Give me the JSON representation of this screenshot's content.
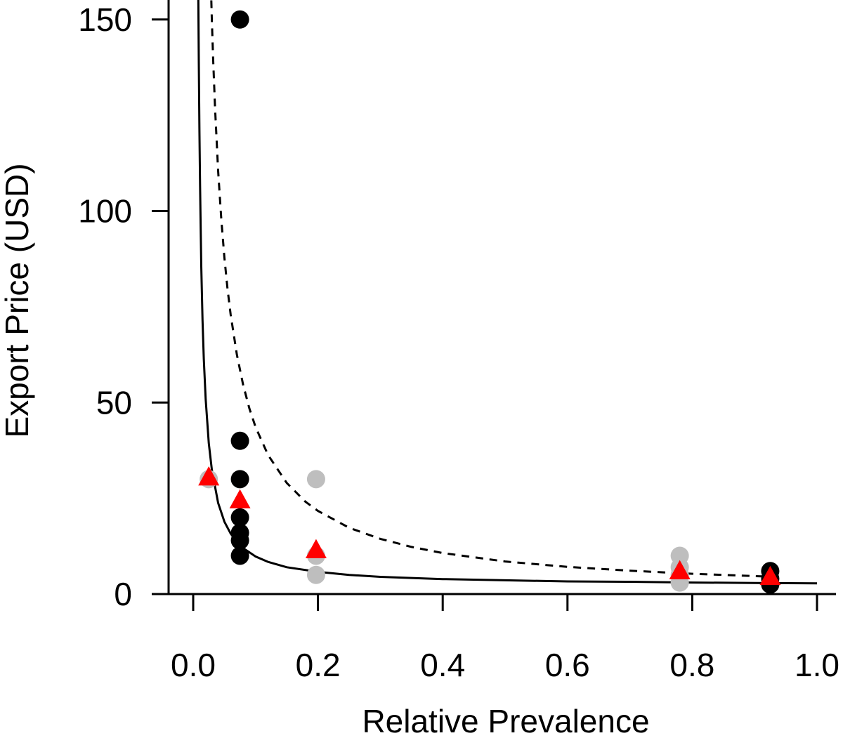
{
  "chart_data": {
    "type": "scatter",
    "title": "",
    "xlabel": "Relative Prevalence",
    "ylabel": "Export Price (USD)",
    "xlim": [
      -0.04,
      1.0
    ],
    "ylim": [
      0,
      155
    ],
    "x_ticks": [
      0.0,
      0.2,
      0.4,
      0.6,
      0.8,
      1.0
    ],
    "x_tick_labels": [
      "0.0",
      "0.2",
      "0.4",
      "0.6",
      "0.8",
      "1.0"
    ],
    "y_ticks": [
      0,
      50,
      100,
      150
    ],
    "y_tick_labels": [
      "0",
      "50",
      "100",
      "150"
    ],
    "grid": false,
    "legend": "none",
    "series": [
      {
        "marker": "circle",
        "color": "#000000",
        "points": [
          [
            0.075,
            150
          ],
          [
            0.075,
            40
          ],
          [
            0.075,
            30
          ],
          [
            0.075,
            20
          ],
          [
            0.075,
            16
          ],
          [
            0.075,
            14
          ],
          [
            0.075,
            10
          ],
          [
            0.925,
            6
          ],
          [
            0.925,
            4
          ],
          [
            0.925,
            2.5
          ]
        ]
      },
      {
        "marker": "circle",
        "color": "#bebebe",
        "points": [
          [
            0.025,
            30
          ],
          [
            0.197,
            30
          ],
          [
            0.197,
            10
          ],
          [
            0.197,
            5
          ],
          [
            0.78,
            10
          ],
          [
            0.78,
            7
          ],
          [
            0.78,
            5
          ],
          [
            0.78,
            3
          ]
        ]
      },
      {
        "marker": "triangle",
        "color": "#ff0000",
        "points": [
          [
            0.025,
            30.5
          ],
          [
            0.075,
            24.5
          ],
          [
            0.197,
            11.5
          ],
          [
            0.78,
            6
          ],
          [
            0.925,
            4.5
          ]
        ]
      }
    ],
    "curves": [
      {
        "style": "solid",
        "color": "#000000",
        "x": [
          0.0082,
          0.009,
          0.01,
          0.011,
          0.012,
          0.013,
          0.015,
          0.017,
          0.02,
          0.025,
          0.03,
          0.04,
          0.05,
          0.06,
          0.07,
          0.08,
          0.1,
          0.12,
          0.15,
          0.2,
          0.25,
          0.3,
          0.4,
          0.5,
          0.6,
          0.7,
          0.8,
          0.9,
          1.0
        ],
        "y": [
          155.9,
          138.6,
          120.8,
          106.7,
          95.2,
          85.6,
          71.5,
          61.4,
          50.8,
          39.4,
          32.4,
          23.8,
          18.9,
          15.8,
          13.6,
          12.0,
          9.8,
          8.4,
          7.0,
          5.8,
          5.0,
          4.5,
          3.9,
          3.6,
          3.3,
          3.2,
          3.0,
          2.9,
          2.8
        ]
      },
      {
        "style": "dashed",
        "color": "#000000",
        "x": [
          0.029,
          0.03,
          0.032,
          0.035,
          0.04,
          0.045,
          0.05,
          0.055,
          0.06,
          0.07,
          0.08,
          0.09,
          0.1,
          0.12,
          0.15,
          0.18,
          0.2,
          0.25,
          0.3,
          0.35,
          0.4,
          0.5,
          0.6,
          0.7,
          0.8,
          0.9,
          0.93
        ],
        "y": [
          155.0,
          149.6,
          139.7,
          127.0,
          110.5,
          97.9,
          87.9,
          79.8,
          73.0,
          62.5,
          54.7,
          48.5,
          43.6,
          36.3,
          29.0,
          24.1,
          21.7,
          17.3,
          14.4,
          12.3,
          10.7,
          8.5,
          7.1,
          6.1,
          5.3,
          4.7,
          4.5
        ]
      }
    ]
  }
}
